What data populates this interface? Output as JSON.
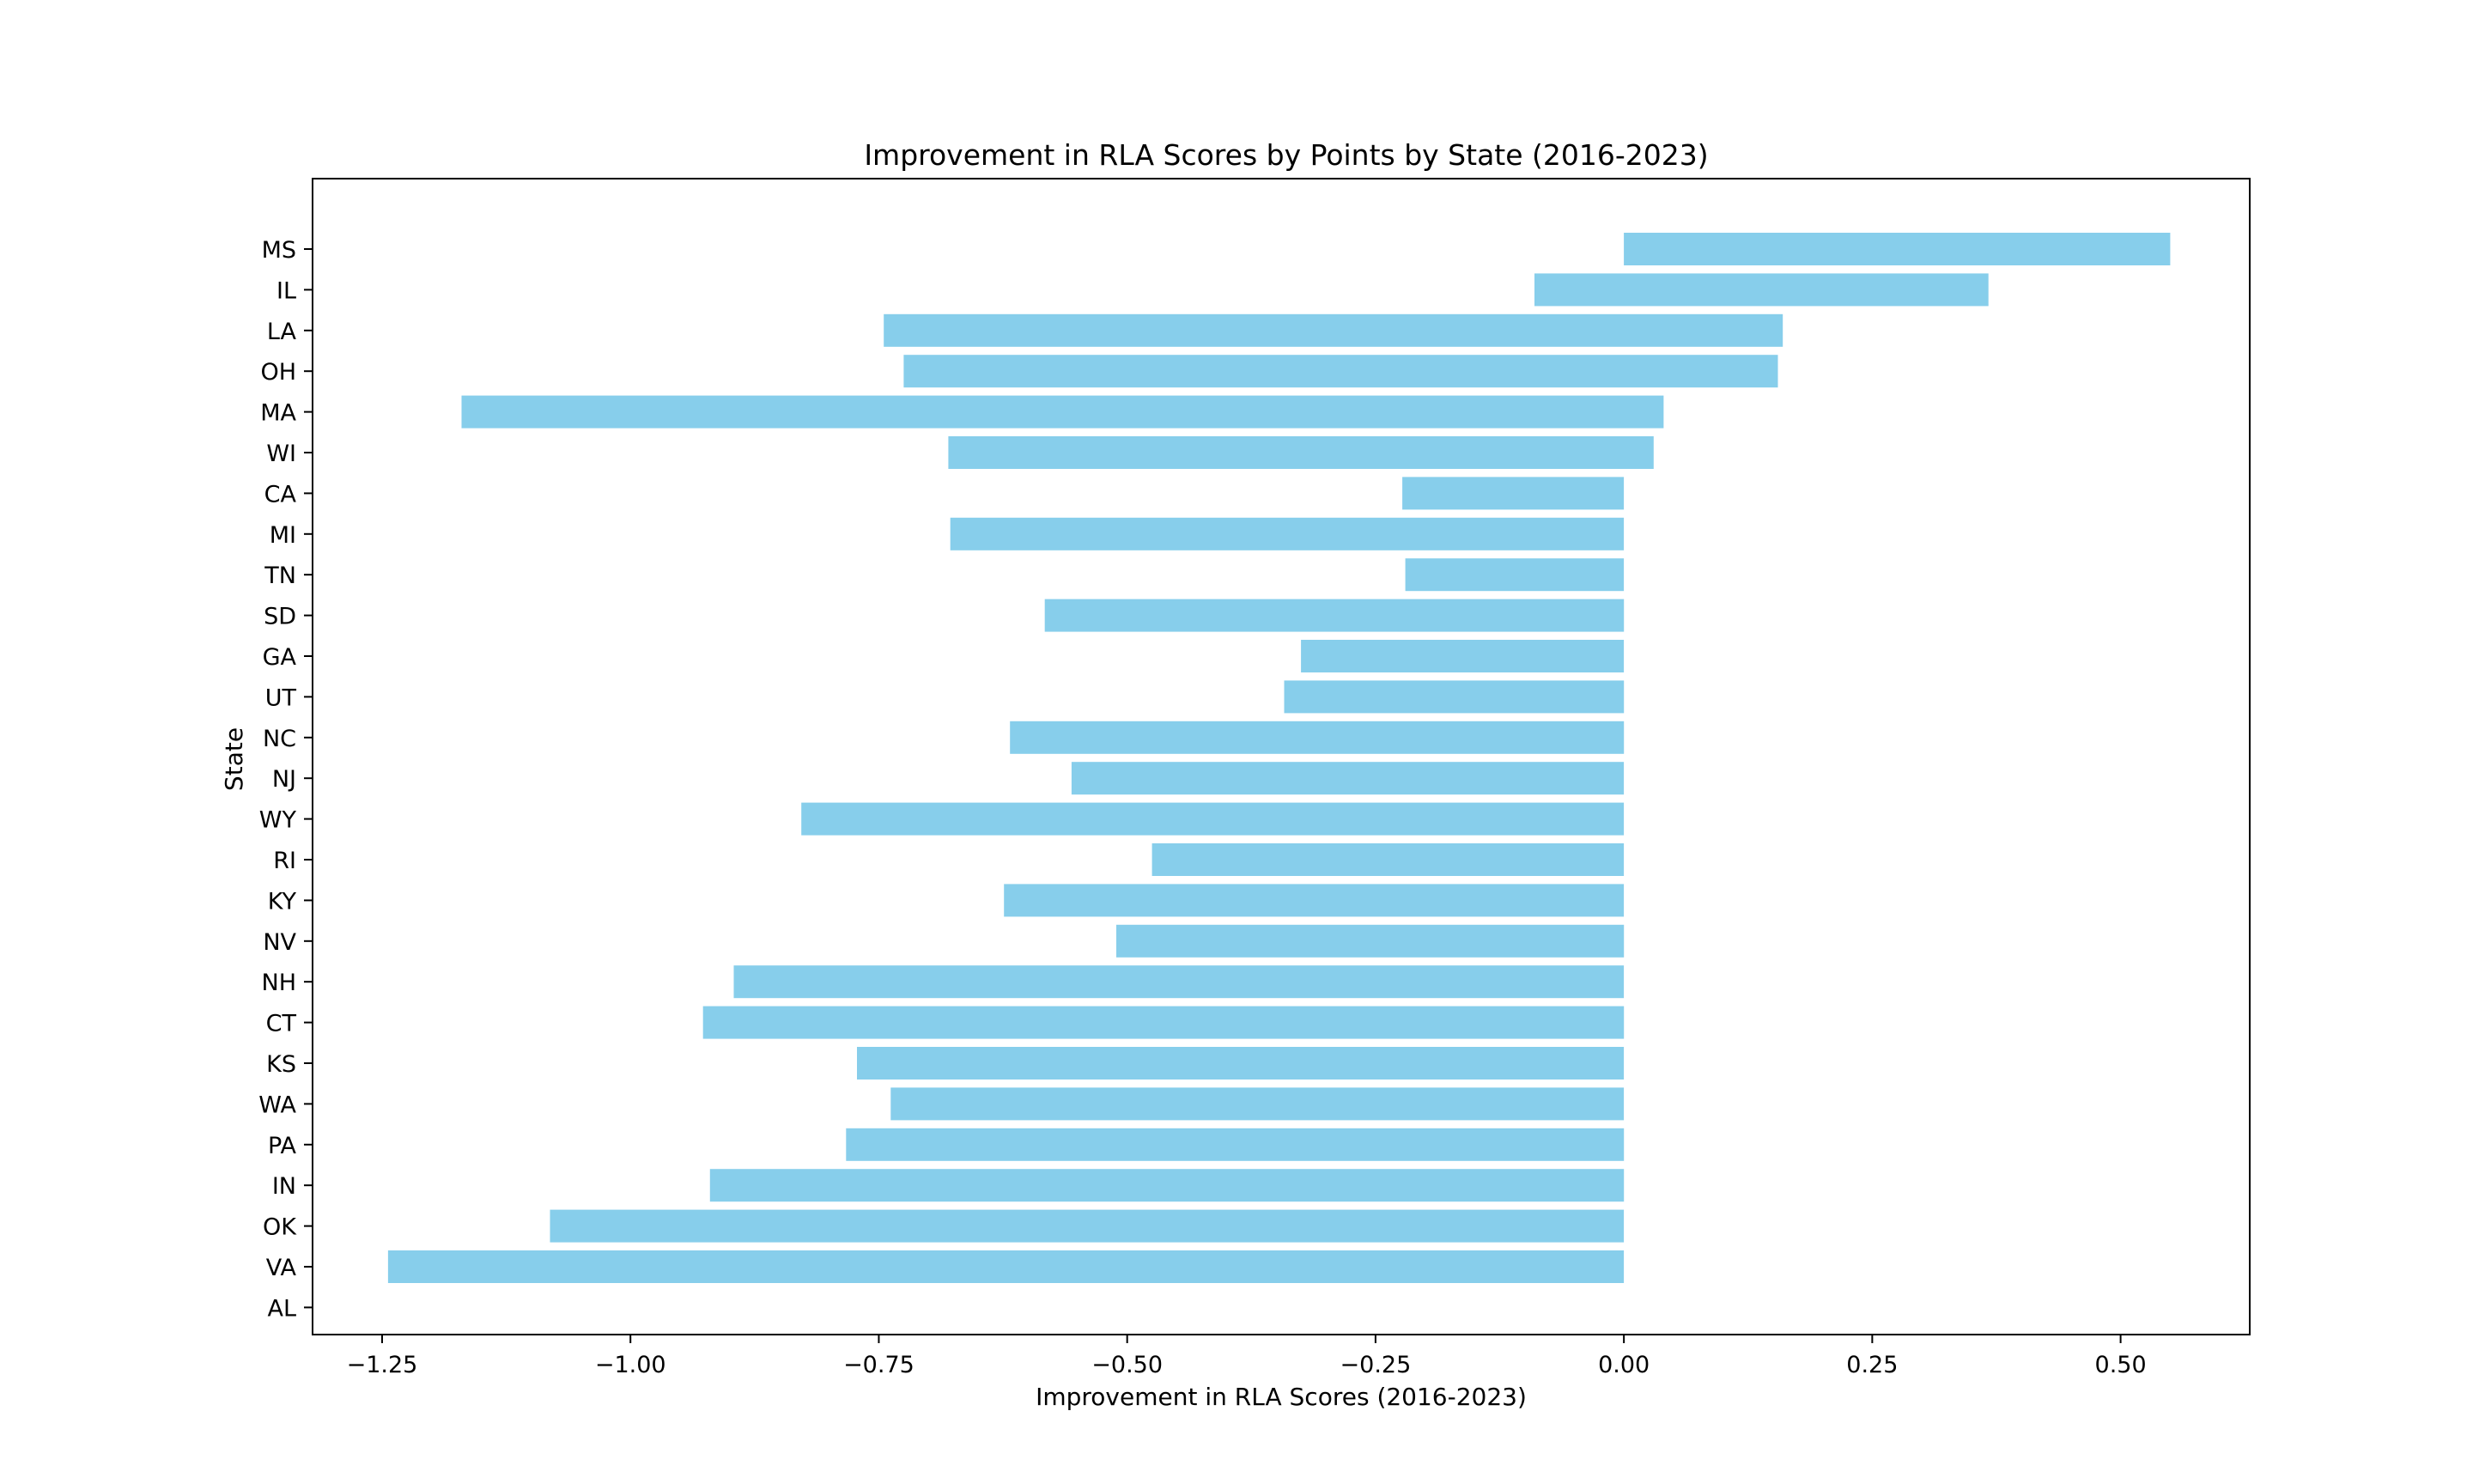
{
  "chart_data": {
    "type": "bar",
    "orientation": "horizontal",
    "title": "Improvement in RLA Scores by Points by State (2016-2023)",
    "xlabel": "Improvement in RLA Scores (2016-2023)",
    "ylabel": "State",
    "xlim": [
      -1.32,
      0.63
    ],
    "xticks": [
      -1.25,
      -1.0,
      -0.75,
      -0.5,
      -0.25,
      0.0,
      0.25,
      0.5
    ],
    "xtick_labels": [
      "−1.25",
      "−1.00",
      "−0.75",
      "−0.50",
      "−0.25",
      "0.00",
      "0.25",
      "0.50"
    ],
    "categories": [
      "MS",
      "IL",
      "LA",
      "OH",
      "MA",
      "WI",
      "CA",
      "MI",
      "TN",
      "SD",
      "GA",
      "UT",
      "NC",
      "NJ",
      "WY",
      "RI",
      "KY",
      "NV",
      "NH",
      "CT",
      "KS",
      "WA",
      "PA",
      "IN",
      "OK",
      "VA",
      "AL"
    ],
    "bars": [
      {
        "state": "MS",
        "start": 0.0,
        "end": 0.55
      },
      {
        "state": "IL",
        "start": -0.09,
        "end": 0.367
      },
      {
        "state": "LA",
        "start": -0.745,
        "end": 0.16
      },
      {
        "state": "OH",
        "start": -0.725,
        "end": 0.155
      },
      {
        "state": "MA",
        "start": -1.17,
        "end": 0.04
      },
      {
        "state": "WI",
        "start": -0.68,
        "end": 0.03
      },
      {
        "state": "CA",
        "start": -0.223,
        "end": 0.0
      },
      {
        "state": "MI",
        "start": -0.678,
        "end": 0.0
      },
      {
        "state": "TN",
        "start": -0.22,
        "end": 0.0
      },
      {
        "state": "SD",
        "start": -0.583,
        "end": 0.0
      },
      {
        "state": "GA",
        "start": -0.325,
        "end": 0.0
      },
      {
        "state": "UT",
        "start": -0.342,
        "end": 0.0
      },
      {
        "state": "NC",
        "start": -0.618,
        "end": 0.0
      },
      {
        "state": "NJ",
        "start": -0.556,
        "end": 0.0
      },
      {
        "state": "WY",
        "start": -0.828,
        "end": 0.0
      },
      {
        "state": "RI",
        "start": -0.475,
        "end": 0.0
      },
      {
        "state": "KY",
        "start": -0.624,
        "end": 0.0
      },
      {
        "state": "NV",
        "start": -0.511,
        "end": 0.0
      },
      {
        "state": "NH",
        "start": -0.896,
        "end": 0.0
      },
      {
        "state": "CT",
        "start": -0.927,
        "end": 0.0
      },
      {
        "state": "KS",
        "start": -0.772,
        "end": 0.0
      },
      {
        "state": "WA",
        "start": -0.738,
        "end": 0.0
      },
      {
        "state": "PA",
        "start": -0.783,
        "end": 0.0
      },
      {
        "state": "IN",
        "start": -0.92,
        "end": 0.0
      },
      {
        "state": "OK",
        "start": -1.081,
        "end": 0.0
      },
      {
        "state": "VA",
        "start": -1.244,
        "end": 0.0
      },
      {
        "state": "AL",
        "start": 0.0,
        "end": 0.0
      }
    ],
    "bar_color": "#87ceeb",
    "grid": false,
    "legend": "none"
  }
}
